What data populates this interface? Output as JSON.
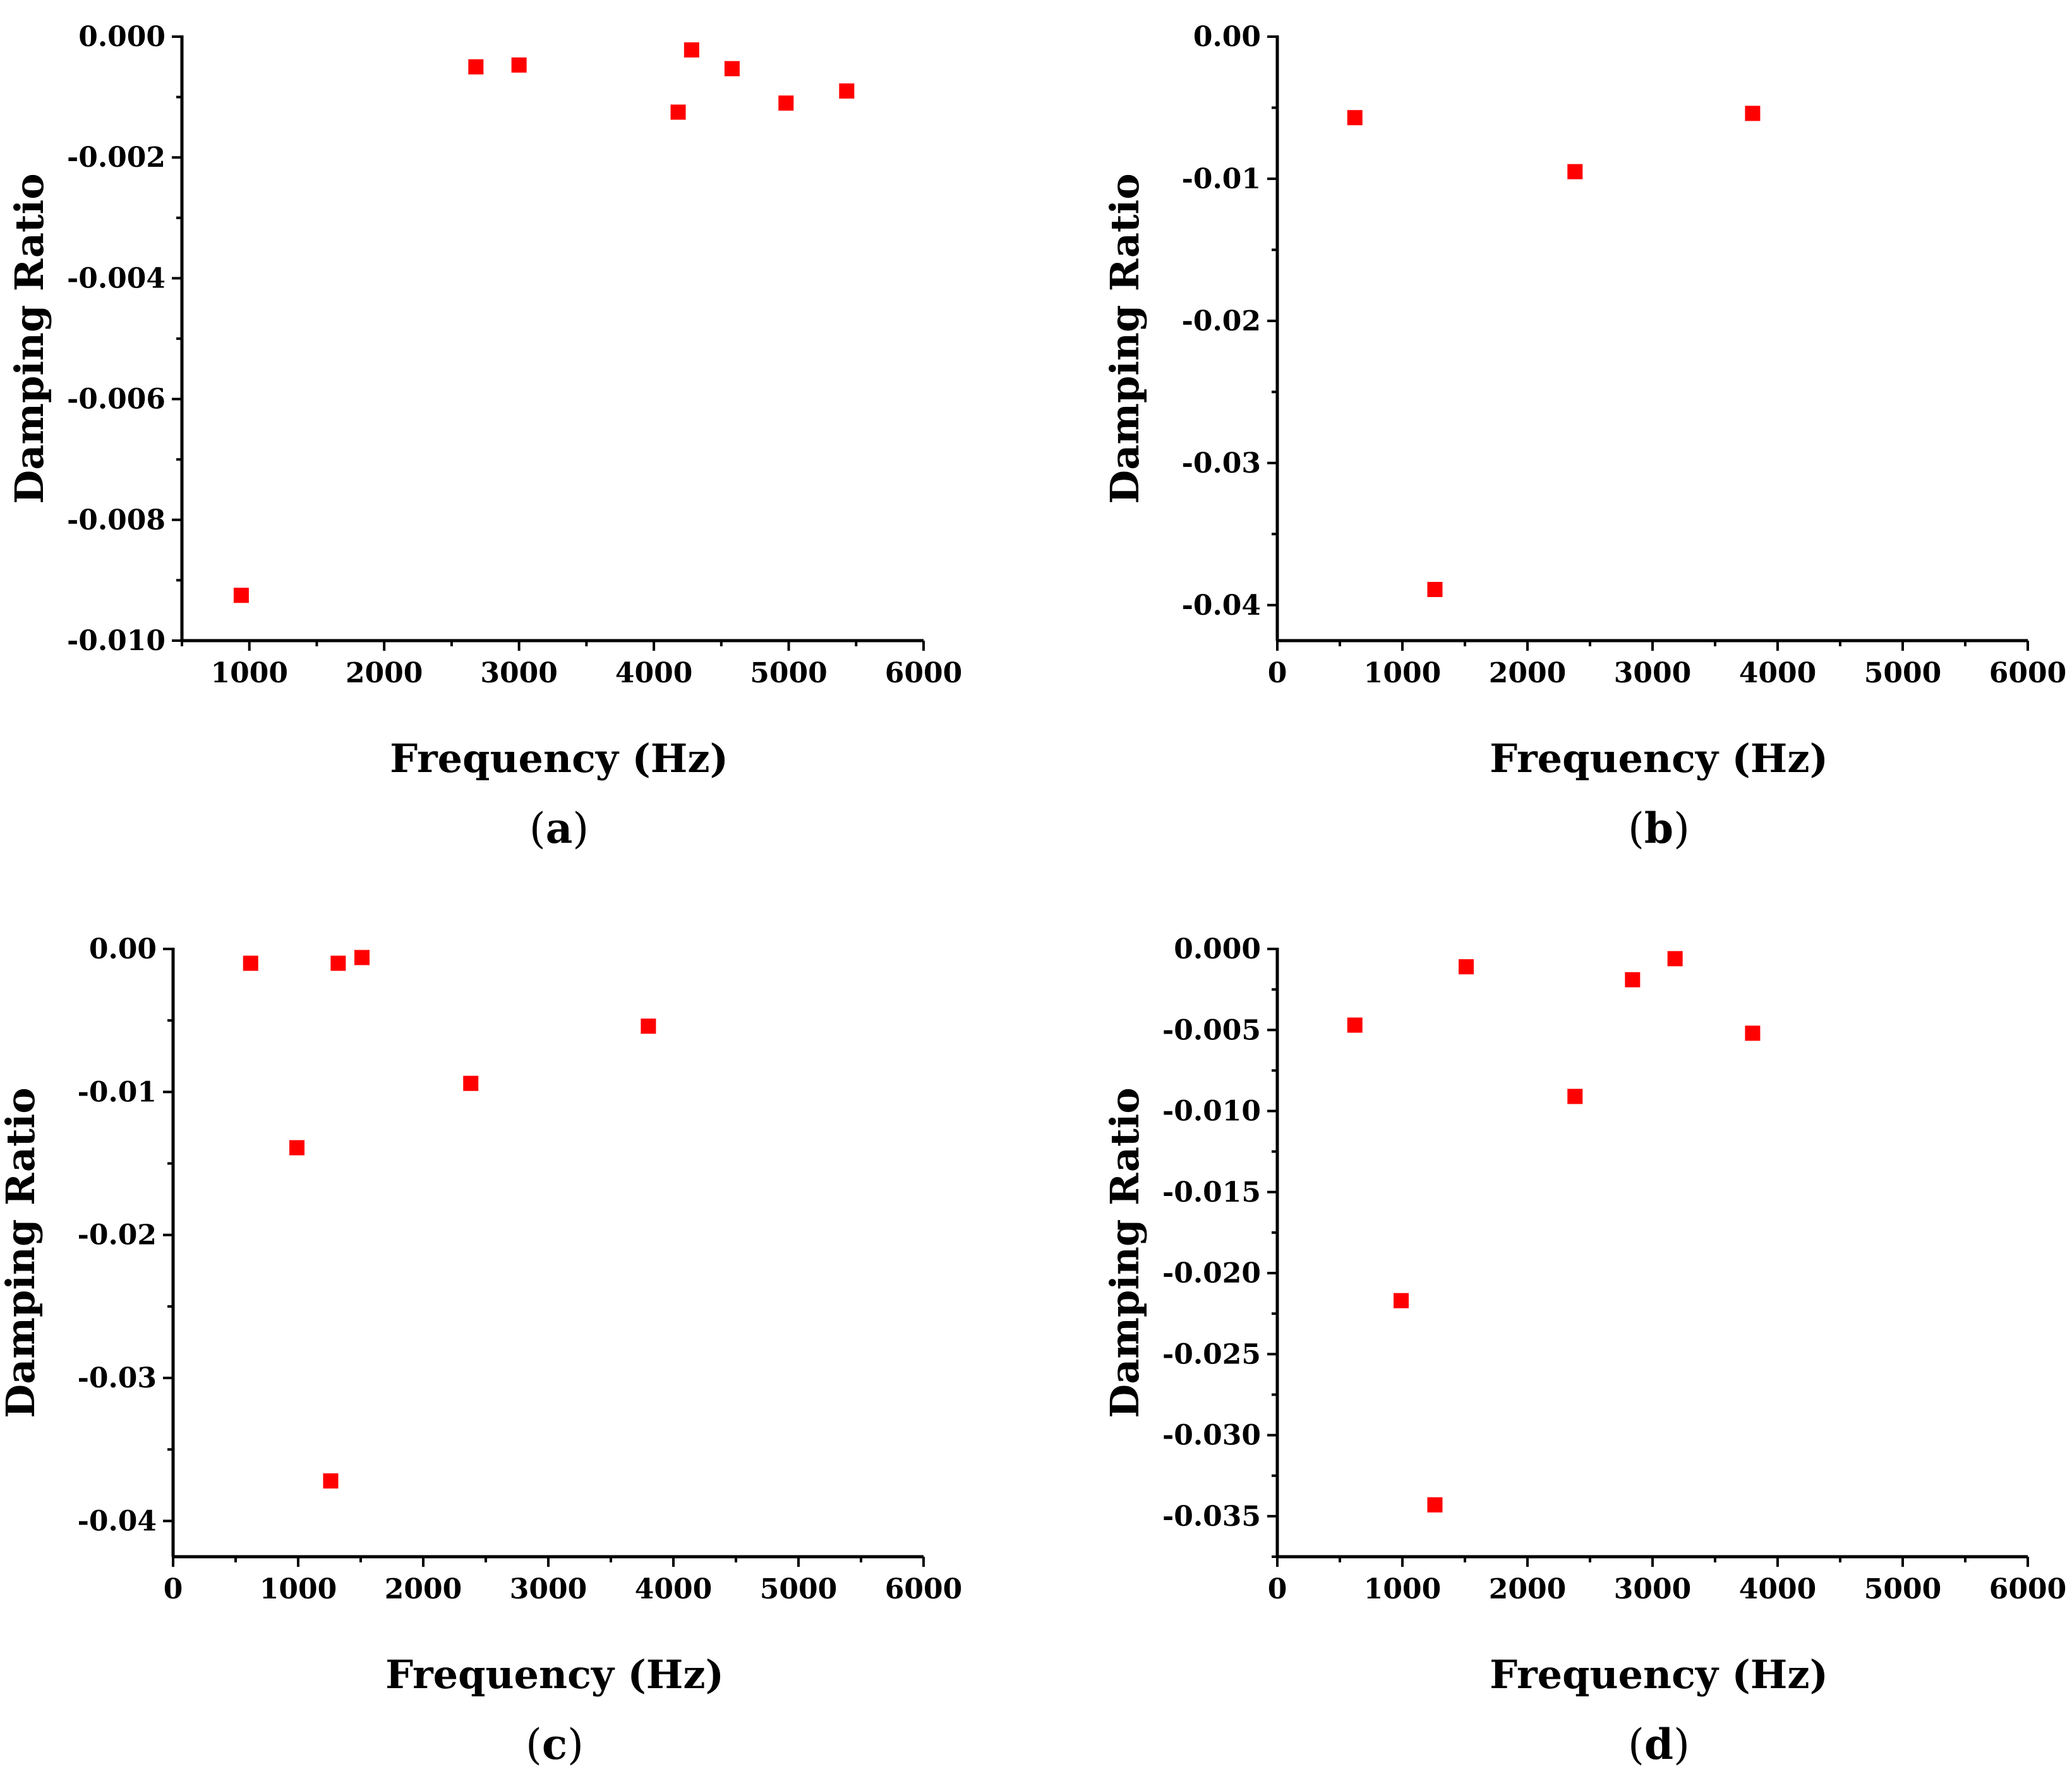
{
  "chart_data": [
    {
      "id": "a",
      "type": "scatter",
      "panel_label": "a",
      "xlabel": "Frequency (Hz)",
      "ylabel": "Damping Ratio",
      "xlim": [
        500,
        6000
      ],
      "ylim": [
        -0.01,
        0.0
      ],
      "xticks": [
        1000,
        2000,
        3000,
        4000,
        5000,
        6000
      ],
      "yticks": [
        0.0,
        -0.002,
        -0.004,
        -0.006,
        -0.008,
        -0.01
      ],
      "ytick_labels": [
        "0.000",
        "-0.002",
        "-0.004",
        "-0.006",
        "-0.008",
        "-0.010"
      ],
      "xtick_labels": [
        "1000",
        "2000",
        "3000",
        "4000",
        "5000",
        "6000"
      ],
      "points": [
        {
          "x": 940,
          "y": -0.00925
        },
        {
          "x": 2680,
          "y": -0.0005
        },
        {
          "x": 3000,
          "y": -0.00047
        },
        {
          "x": 4180,
          "y": -0.00125
        },
        {
          "x": 4280,
          "y": -0.00022
        },
        {
          "x": 4580,
          "y": -0.00053
        },
        {
          "x": 4980,
          "y": -0.0011
        },
        {
          "x": 5430,
          "y": -0.0009
        }
      ],
      "marker_color": "#ff0000"
    },
    {
      "id": "b",
      "type": "scatter",
      "panel_label": "b",
      "xlabel": "Frequency (Hz)",
      "ylabel": "Damping Ratio",
      "xlim": [
        0,
        6000
      ],
      "ylim": [
        -0.0425,
        0.0
      ],
      "xticks": [
        0,
        1000,
        2000,
        3000,
        4000,
        5000,
        6000
      ],
      "yticks": [
        0.0,
        -0.01,
        -0.02,
        -0.03,
        -0.04
      ],
      "ytick_labels": [
        "0.00",
        "-0.01",
        "-0.02",
        "-0.03",
        "-0.04"
      ],
      "xtick_labels": [
        "0",
        "1000",
        "2000",
        "3000",
        "4000",
        "5000",
        "6000"
      ],
      "points": [
        {
          "x": 620,
          "y": -0.0057
        },
        {
          "x": 1260,
          "y": -0.0389
        },
        {
          "x": 2380,
          "y": -0.0095
        },
        {
          "x": 3800,
          "y": -0.0054
        }
      ],
      "marker_color": "#ff0000"
    },
    {
      "id": "c",
      "type": "scatter",
      "panel_label": "c",
      "xlabel": "Frequency (Hz)",
      "ylabel": "Damping Ratio",
      "xlim": [
        0,
        6000
      ],
      "ylim": [
        -0.0425,
        0.0
      ],
      "xticks": [
        0,
        1000,
        2000,
        3000,
        4000,
        5000,
        6000
      ],
      "yticks": [
        0.0,
        -0.01,
        -0.02,
        -0.03,
        -0.04
      ],
      "ytick_labels": [
        "0.00",
        "-0.01",
        "-0.02",
        "-0.03",
        "-0.04"
      ],
      "xtick_labels": [
        "0",
        "1000",
        "2000",
        "3000",
        "4000",
        "5000",
        "6000"
      ],
      "points": [
        {
          "x": 620,
          "y": -0.001
        },
        {
          "x": 990,
          "y": -0.0139
        },
        {
          "x": 1260,
          "y": -0.0372
        },
        {
          "x": 1320,
          "y": -0.001
        },
        {
          "x": 1510,
          "y": -0.0006
        },
        {
          "x": 2380,
          "y": -0.0094
        },
        {
          "x": 3800,
          "y": -0.0054
        }
      ],
      "marker_color": "#ff0000"
    },
    {
      "id": "d",
      "type": "scatter",
      "panel_label": "d",
      "xlabel": "Frequency (Hz)",
      "ylabel": "Damping Ratio",
      "xlim": [
        0,
        6000
      ],
      "ylim": [
        -0.0375,
        0.0
      ],
      "xticks": [
        0,
        1000,
        2000,
        3000,
        4000,
        5000,
        6000
      ],
      "yticks": [
        0.0,
        -0.005,
        -0.01,
        -0.015,
        -0.02,
        -0.025,
        -0.03,
        -0.035
      ],
      "ytick_labels": [
        "0.000",
        "-0.005",
        "-0.010",
        "-0.015",
        "-0.020",
        "-0.025",
        "-0.030",
        "-0.035"
      ],
      "xtick_labels": [
        "0",
        "1000",
        "2000",
        "3000",
        "4000",
        "5000",
        "6000"
      ],
      "points": [
        {
          "x": 620,
          "y": -0.0047
        },
        {
          "x": 990,
          "y": -0.0217
        },
        {
          "x": 1260,
          "y": -0.0343
        },
        {
          "x": 1510,
          "y": -0.0011
        },
        {
          "x": 2380,
          "y": -0.0091
        },
        {
          "x": 2840,
          "y": -0.0019
        },
        {
          "x": 3180,
          "y": -0.0006
        },
        {
          "x": 3800,
          "y": -0.0052
        }
      ],
      "marker_color": "#ff0000"
    }
  ]
}
